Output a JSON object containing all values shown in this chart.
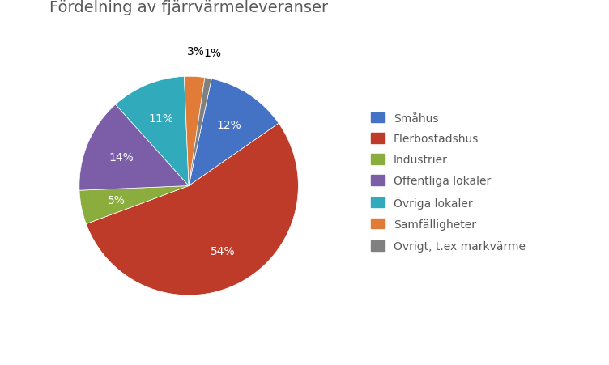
{
  "title": "Fördelning av fjärrvärmeleveranser",
  "labels": [
    "Småhus",
    "Flerbostadshus",
    "Industrier",
    "Offentliga lokaler",
    "Övriga lokaler",
    "Samfälligheter",
    "Övrigt, t.ex markvärme"
  ],
  "values": [
    12,
    54,
    5,
    14,
    11,
    3,
    1
  ],
  "colors": [
    "#4472C4",
    "#BE3B2A",
    "#8AAD3E",
    "#7B5EA7",
    "#31AABB",
    "#E07B38",
    "#808080"
  ],
  "pct_labels": [
    "12%",
    "54%",
    "5%",
    "14%",
    "11%",
    "3%",
    "1%"
  ],
  "outside_threshold": 3,
  "title_fontsize": 14,
  "label_fontsize": 10,
  "legend_fontsize": 10,
  "startangle": 78,
  "title_color": "#595959"
}
